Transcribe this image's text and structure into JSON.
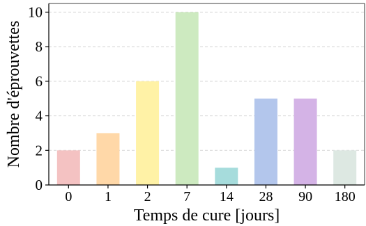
{
  "chart_data": {
    "type": "bar",
    "categories": [
      "0",
      "1",
      "2",
      "7",
      "14",
      "28",
      "90",
      "180"
    ],
    "values": [
      2,
      3,
      6,
      10,
      1,
      5,
      5,
      2
    ],
    "title": "",
    "xlabel": "Temps de cure [jours]",
    "ylabel": "Nombre d'éprouvettes",
    "ylim": [
      0,
      10.5
    ],
    "yticks": [
      0,
      2,
      4,
      6,
      8,
      10
    ],
    "grid": "horizontal dashed",
    "legend": "none",
    "bar_colors": [
      "#F4C2C2",
      "#FFD8A8",
      "#FFF2A6",
      "#CDEAC0",
      "#A6DCDC",
      "#B3C6EC",
      "#D4B3E6",
      "#DDE8E2"
    ],
    "grid_color": "#d3d3d3",
    "axis_color": "#000000"
  }
}
